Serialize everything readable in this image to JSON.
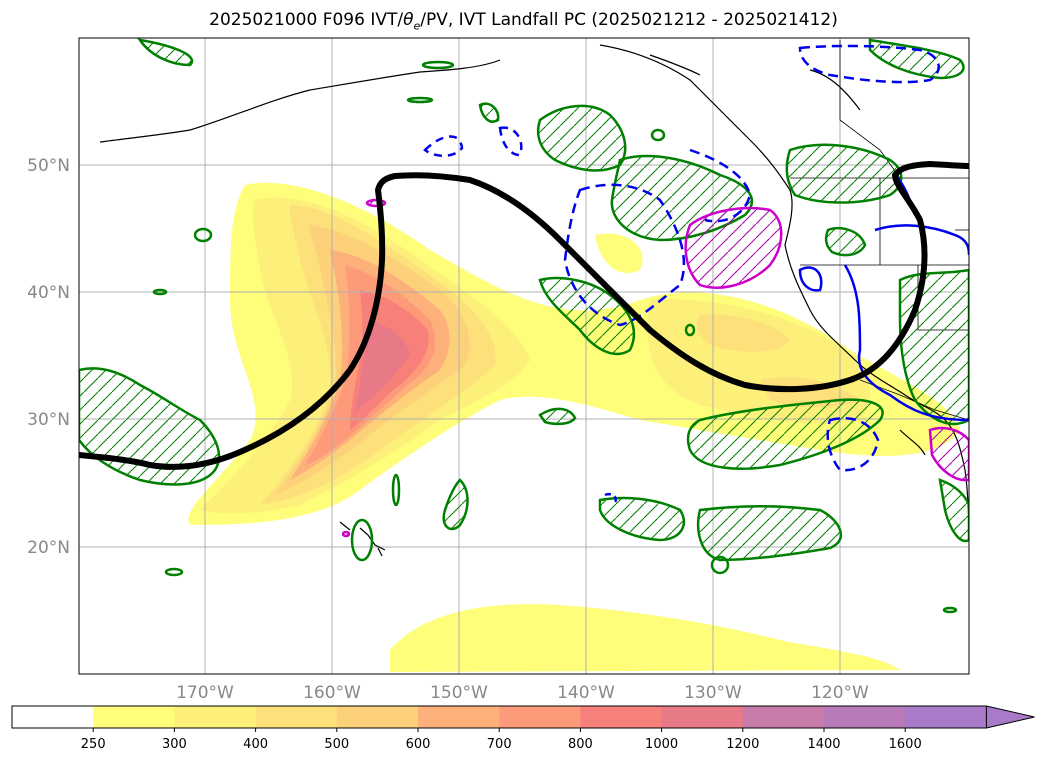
{
  "title": {
    "main": "2025021000 F096 IVT/",
    "theta": "θ",
    "theta_sub": "e",
    "rest": "/PV, IVT Landfall PC (2025021212 - 2025021412)"
  },
  "lat_labels": [
    "50°N",
    "40°N",
    "30°N",
    "20°N"
  ],
  "lon_labels": [
    "170°W",
    "160°W",
    "150°W",
    "140°W",
    "130°W",
    "120°W"
  ],
  "colorbar": {
    "ticks": [
      "250",
      "300",
      "400",
      "500",
      "600",
      "700",
      "800",
      "1000",
      "1200",
      "1400",
      "1600"
    ],
    "colors": [
      "#ffffff",
      "#fefe7a",
      "#fdf07a",
      "#fde07a",
      "#fdd07a",
      "#fdb07a",
      "#fd9a7a",
      "#f8807a",
      "#e87a88",
      "#c87aa8",
      "#b87ab8",
      "#a87ac8"
    ],
    "extend": "max"
  },
  "legend_colors": {
    "pv": "#008000",
    "theta_pos": "#cc00cc",
    "theta_neg": "#0000ee",
    "pc": "#000000"
  }
}
